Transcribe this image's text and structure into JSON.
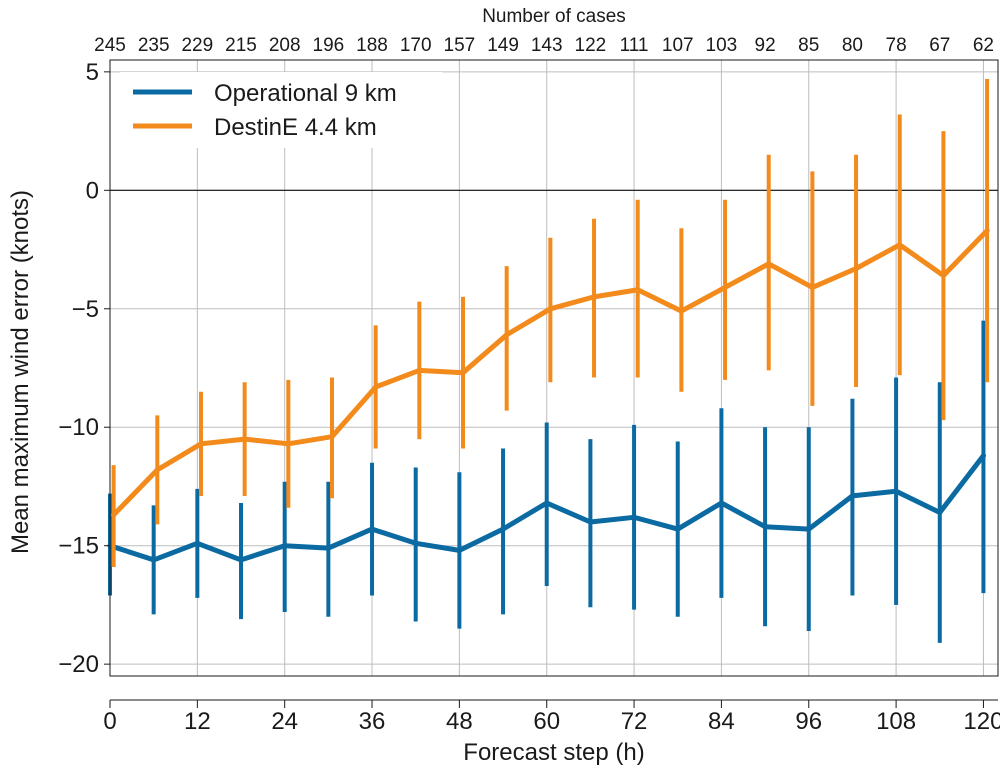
{
  "chart_data": {
    "type": "line",
    "top_axis_title": "Number of cases",
    "case_counts": [
      "245",
      "235",
      "229",
      "215",
      "208",
      "196",
      "188",
      "170",
      "157",
      "149",
      "143",
      "122",
      "111",
      "107",
      "103",
      "92",
      "85",
      "80",
      "78",
      "67",
      "62"
    ],
    "xlabel": "Forecast step (h)",
    "ylabel": "Mean maximum wind error (knots)",
    "xlim": [
      0,
      122
    ],
    "ylim": [
      -20.5,
      5.5
    ],
    "xticks": [
      0,
      12,
      24,
      36,
      48,
      60,
      72,
      84,
      96,
      108,
      120
    ],
    "yticks": [
      5,
      0,
      -5,
      -10,
      -15,
      -20
    ],
    "ytick_labels": [
      "5",
      "0",
      "−5",
      "−10",
      "−15",
      "−20"
    ],
    "grid": true,
    "zero_line": true,
    "legend_position": "top-left",
    "series": [
      {
        "name": "Operational 9 km",
        "color": "#0a6aa1",
        "x": [
          0,
          6,
          12,
          18,
          24,
          30,
          36,
          42,
          48,
          54,
          60,
          66,
          72,
          78,
          84,
          90,
          96,
          102,
          108,
          114,
          120
        ],
        "values": [
          -15.0,
          -15.6,
          -14.9,
          -15.6,
          -15.0,
          -15.1,
          -14.3,
          -14.9,
          -15.2,
          -14.3,
          -13.2,
          -14.0,
          -13.8,
          -14.3,
          -13.2,
          -14.2,
          -14.3,
          -12.9,
          -12.7,
          -13.6,
          -11.2
        ],
        "lower": [
          -17.1,
          -17.9,
          -17.2,
          -18.1,
          -17.8,
          -18.0,
          -17.1,
          -18.2,
          -18.5,
          -17.9,
          -16.7,
          -17.6,
          -17.7,
          -18.0,
          -17.2,
          -18.4,
          -18.6,
          -17.1,
          -17.5,
          -19.1,
          -17.0
        ],
        "upper": [
          -12.8,
          -13.3,
          -12.6,
          -13.2,
          -12.3,
          -12.3,
          -11.5,
          -11.7,
          -11.9,
          -10.9,
          -9.8,
          -10.5,
          -9.9,
          -10.6,
          -9.2,
          -10.0,
          -10.0,
          -8.8,
          -7.9,
          -8.1,
          -5.5
        ]
      },
      {
        "name": "DestinE 4.4 km",
        "color": "#f28a1c",
        "x": [
          0.5,
          6.5,
          12.5,
          18.5,
          24.5,
          30.5,
          36.5,
          42.5,
          48.5,
          54.5,
          60.5,
          66.5,
          72.5,
          78.5,
          84.5,
          90.5,
          96.5,
          102.5,
          108.5,
          114.5,
          120.5
        ],
        "values": [
          -13.7,
          -11.8,
          -10.7,
          -10.5,
          -10.7,
          -10.4,
          -8.3,
          -7.6,
          -7.7,
          -6.1,
          -5.0,
          -4.5,
          -4.2,
          -5.1,
          -4.1,
          -3.1,
          -4.1,
          -3.3,
          -2.3,
          -3.6,
          -1.7
        ],
        "lower": [
          -15.9,
          -14.1,
          -12.9,
          -12.9,
          -13.4,
          -13.0,
          -10.9,
          -10.5,
          -10.9,
          -9.3,
          -8.1,
          -7.9,
          -7.9,
          -8.5,
          -8.0,
          -7.6,
          -9.1,
          -8.3,
          -7.8,
          -9.7,
          -8.1
        ],
        "upper": [
          -11.6,
          -9.5,
          -8.5,
          -8.1,
          -8.0,
          -7.9,
          -5.7,
          -4.7,
          -4.5,
          -3.2,
          -2.0,
          -1.2,
          -0.4,
          -1.6,
          -0.4,
          1.5,
          0.8,
          1.5,
          3.2,
          2.5,
          4.7
        ]
      }
    ]
  }
}
